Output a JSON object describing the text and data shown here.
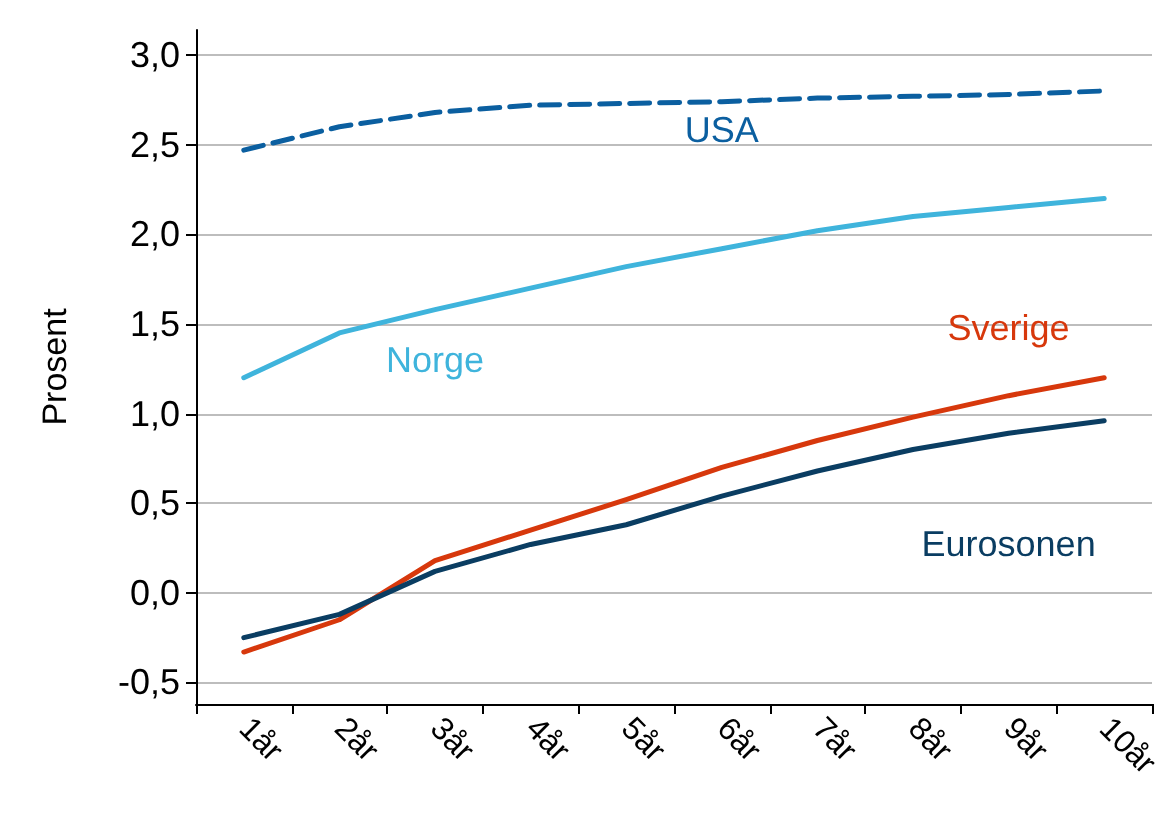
{
  "chart_data": {
    "type": "line",
    "ylabel": "Prosent",
    "categories": [
      "1år",
      "2år",
      "3år",
      "4år",
      "5år",
      "6år",
      "7år",
      "8år",
      "9år",
      "10år"
    ],
    "ylim": [
      -0.62,
      3.14
    ],
    "yticks": [
      {
        "value": -0.5,
        "label": "-0,5"
      },
      {
        "value": 0,
        "label": "0,0"
      },
      {
        "value": 0.5,
        "label": "0,5"
      },
      {
        "value": 1,
        "label": "1,0"
      },
      {
        "value": 1.5,
        "label": "1,5"
      },
      {
        "value": 2,
        "label": "2,0"
      },
      {
        "value": 2.5,
        "label": "2,5"
      },
      {
        "value": 3,
        "label": "3,0"
      }
    ],
    "grid": "y",
    "legend": false,
    "series": [
      {
        "name": "USA",
        "color": "#0b5fa0",
        "line_style": "dashed",
        "values": [
          2.47,
          2.6,
          2.68,
          2.72,
          2.73,
          2.74,
          2.76,
          2.77,
          2.78,
          2.8
        ]
      },
      {
        "name": "Norge",
        "color": "#3fb4dc",
        "values": [
          1.2,
          1.45,
          1.58,
          1.7,
          1.82,
          1.92,
          2.02,
          2.1,
          2.15,
          2.2
        ]
      },
      {
        "name": "Sverige",
        "color": "#d7380c",
        "values": [
          -0.33,
          -0.15,
          0.18,
          0.35,
          0.52,
          0.7,
          0.85,
          0.98,
          1.1,
          1.2
        ]
      },
      {
        "name": "Eurosonen",
        "color": "#0a3d62",
        "values": [
          -0.25,
          -0.12,
          0.12,
          0.27,
          0.38,
          0.54,
          0.68,
          0.8,
          0.89,
          0.96
        ]
      }
    ]
  }
}
